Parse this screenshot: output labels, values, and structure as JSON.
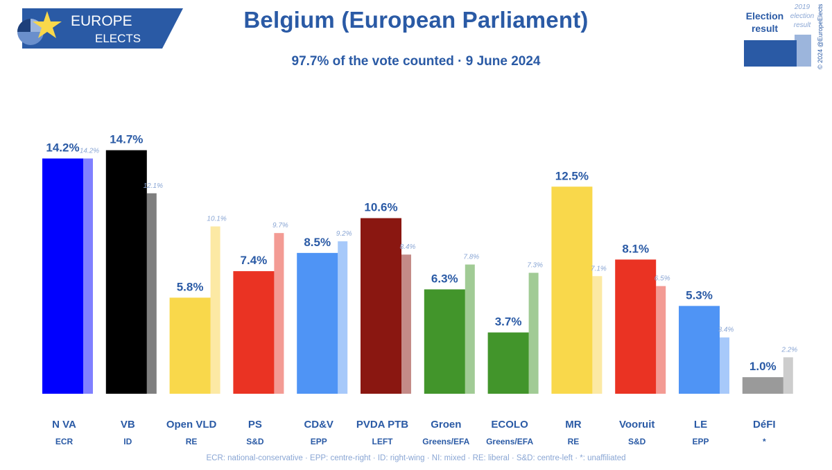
{
  "header": {
    "title": "Belgium (European Parliament)",
    "subtitle": "97.7% of the vote counted · 9 June 2024",
    "logo": {
      "line1": "EUROPE",
      "line2": "ELECTS",
      "bg_color": "#2a5aa5"
    }
  },
  "legend": {
    "current_label_line1": "Election",
    "current_label_line2": "result",
    "previous_label_line1": "2019",
    "previous_label_line2": "election",
    "previous_label_line3": "result",
    "current_color": "#2a5aa5",
    "previous_color": "#9cb5dc"
  },
  "copyright": "© 2024 @EuropeElects",
  "footnote": "ECR: national-conservative · EPP: centre-right · ID: right-wing · NI: mixed · RE: liberal · S&D: centre-left · *: unaffiliated",
  "chart_data": {
    "type": "bar",
    "title": "Belgium (European Parliament)",
    "subtitle": "97.7% of the vote counted · 9 June 2024",
    "categories": [
      "N VA",
      "VB",
      "Open VLD",
      "PS",
      "CD&V",
      "PVDA PTB",
      "Groen",
      "ECOLO",
      "MR",
      "Vooruit",
      "LE",
      "DéFI"
    ],
    "groups": [
      "ECR",
      "ID",
      "RE",
      "S&D",
      "EPP",
      "LEFT",
      "Greens/EFA",
      "Greens/EFA",
      "RE",
      "S&D",
      "EPP",
      "*"
    ],
    "series": [
      {
        "name": "Election result",
        "values": [
          14.2,
          14.7,
          5.8,
          7.4,
          8.5,
          10.6,
          6.3,
          3.7,
          12.5,
          8.1,
          5.3,
          1.0
        ]
      },
      {
        "name": "2019 election result",
        "values": [
          14.2,
          12.1,
          10.1,
          9.7,
          9.2,
          8.4,
          7.8,
          7.3,
          7.1,
          6.5,
          3.4,
          2.2
        ]
      }
    ],
    "value_labels_current": [
      "14.2%",
      "14.7%",
      "5.8%",
      "7.4%",
      "8.5%",
      "10.6%",
      "6.3%",
      "3.7%",
      "12.5%",
      "8.1%",
      "5.3%",
      "1.0%"
    ],
    "value_labels_previous": [
      "14.2%",
      "12.1%",
      "10.1%",
      "9.7%",
      "9.2%",
      "8.4%",
      "7.8%",
      "7.3%",
      "7.1%",
      "6.5%",
      "3.4%",
      "2.2%"
    ],
    "colors_current": [
      "#0000ff",
      "#000000",
      "#f9d84b",
      "#ea3323",
      "#4f94f5",
      "#8a1711",
      "#42952b",
      "#42952b",
      "#f9d84b",
      "#ea3323",
      "#4f94f5",
      "#9a9a9a"
    ],
    "colors_previous": [
      "#8080ff",
      "#7f7f7f",
      "#fce9a4",
      "#f39b94",
      "#a7c9fa",
      "#c48b88",
      "#a1cb95",
      "#a1cb95",
      "#fce9a4",
      "#f39b94",
      "#a7c9fa",
      "#cdcdcd"
    ],
    "ylim": [
      0,
      15.5
    ],
    "grid": false,
    "legend_position": "top-right"
  }
}
